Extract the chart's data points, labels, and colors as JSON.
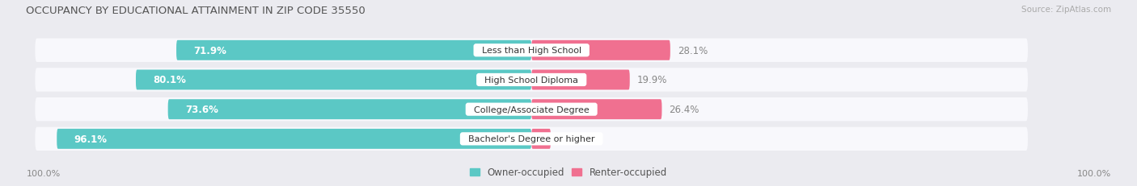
{
  "title": "OCCUPANCY BY EDUCATIONAL ATTAINMENT IN ZIP CODE 35550",
  "source": "Source: ZipAtlas.com",
  "categories": [
    "Less than High School",
    "High School Diploma",
    "College/Associate Degree",
    "Bachelor's Degree or higher"
  ],
  "owner_values": [
    71.9,
    80.1,
    73.6,
    96.1
  ],
  "renter_values": [
    28.1,
    19.9,
    26.4,
    3.9
  ],
  "owner_color": "#5BC8C5",
  "renter_color": "#F07090",
  "owner_label": "Owner-occupied",
  "renter_label": "Renter-occupied",
  "background_color": "#ebebf0",
  "bar_background": "#f8f8fc",
  "axis_label_left": "100.0%",
  "axis_label_right": "100.0%",
  "max_val": 100.0
}
